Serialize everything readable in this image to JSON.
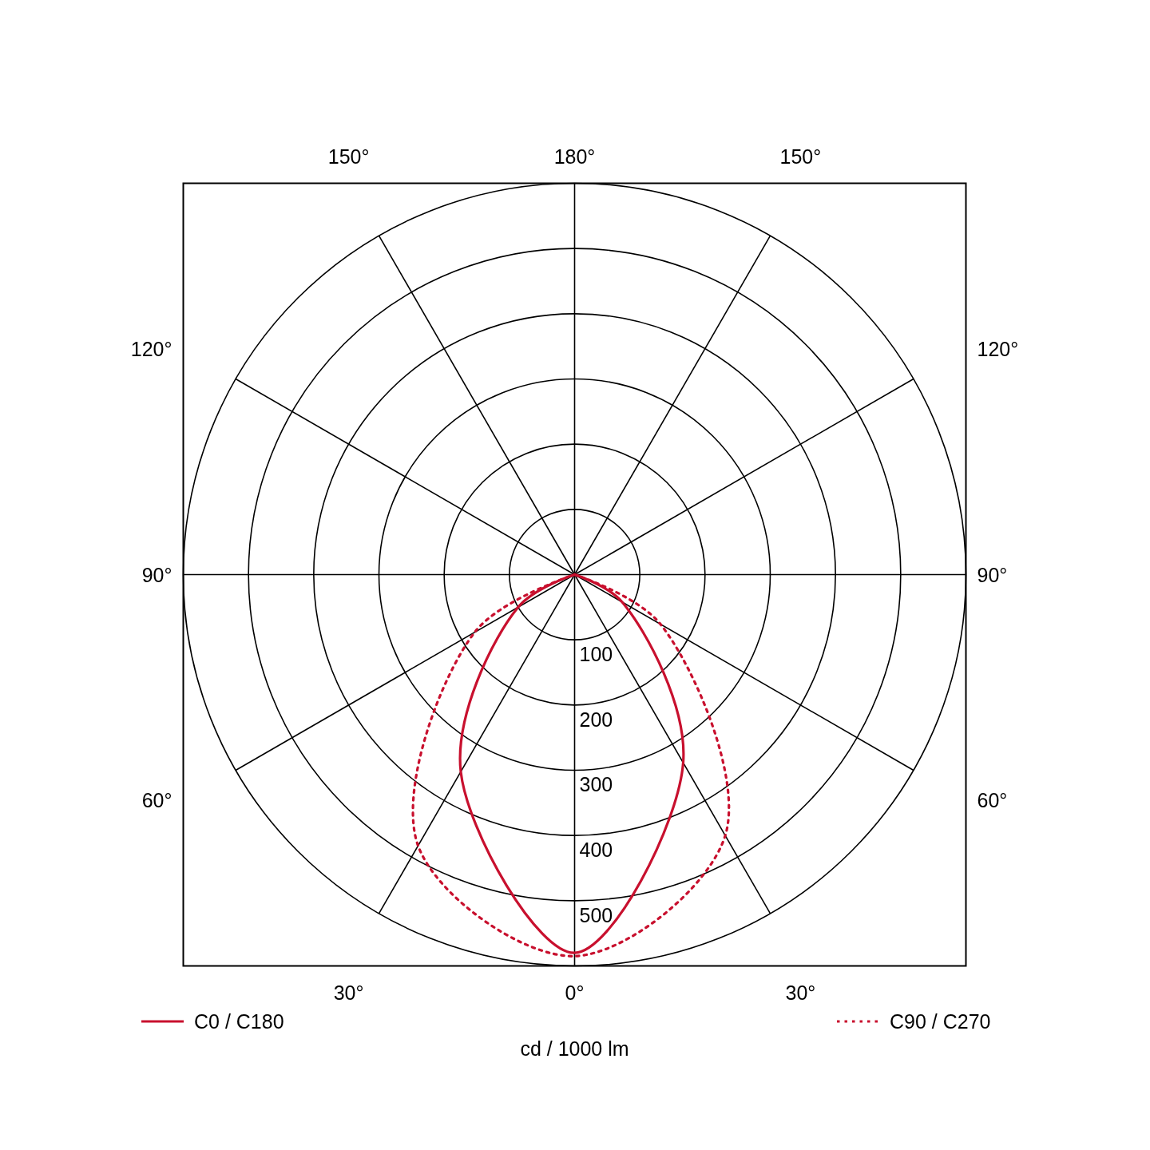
{
  "chart_data": {
    "type": "radar",
    "ylabel": "cd / 1000 lm",
    "ylim": [
      0,
      600
    ],
    "yticks": [
      100,
      200,
      300,
      400,
      500
    ],
    "grid": true,
    "legend": "bottom",
    "marker": "none",
    "categories": [
      "180°",
      "150°",
      "120°",
      "90°",
      "60°",
      "30°",
      "0°",
      "30°",
      "60°",
      "90°",
      "120°",
      "150°"
    ],
    "series": [
      {
        "name": "C0 / C180",
        "color": "#c8102e",
        "line_style": "solid",
        "values": [
          0,
          0,
          0,
          0,
          84,
          333,
          580,
          349,
          100,
          0,
          0,
          0
        ]
      },
      {
        "name": "C90 / C270",
        "color": "#c8102e",
        "line_style": "dotted",
        "values": [
          0,
          0,
          0,
          0,
          152,
          462,
          585,
          480,
          177,
          0,
          0,
          0
        ]
      }
    ]
  }
}
